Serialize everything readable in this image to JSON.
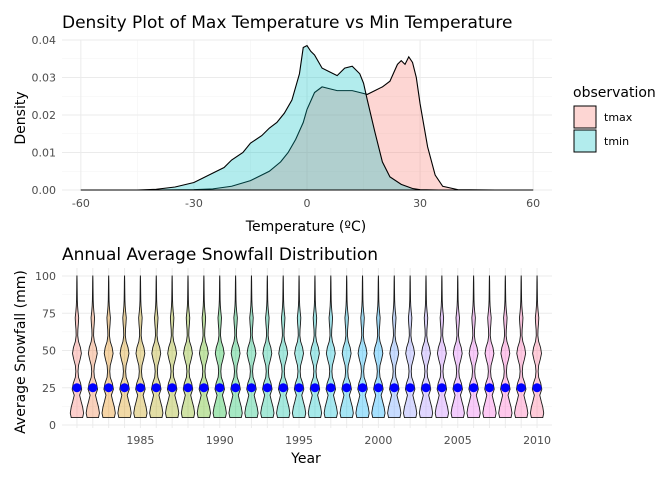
{
  "chart_data": [
    {
      "type": "area",
      "title": "Density Plot of Max Temperature vs Min Temperature",
      "xlabel": "Temperature (ºC)",
      "ylabel": "Density",
      "xlim": [
        -65,
        65
      ],
      "ylim": [
        0,
        0.04
      ],
      "x_ticks": [
        -60,
        -30,
        0,
        30,
        60
      ],
      "x_tick_labels": [
        "-60",
        "-30",
        "0",
        "30",
        "60"
      ],
      "y_ticks": [
        0,
        0.01,
        0.02,
        0.03,
        0.04
      ],
      "y_tick_labels": [
        "0.00",
        "0.01",
        "0.02",
        "0.03",
        "0.04"
      ],
      "grid": true,
      "legend": {
        "title": "observation",
        "placement": "right",
        "entries": [
          {
            "label": "tmax",
            "color": "#f8766d"
          },
          {
            "label": "tmin",
            "color": "#00bfc4"
          }
        ]
      },
      "series": [
        {
          "name": "tmax",
          "color": "#f8766d",
          "x": [
            -60,
            -40,
            -30,
            -25,
            -20,
            -15,
            -10,
            -7,
            -5,
            -3,
            -1,
            0,
            2,
            4,
            6,
            8,
            10,
            12,
            14,
            16,
            18,
            20,
            22,
            24,
            25,
            26,
            27,
            28,
            29,
            30,
            32,
            34,
            36,
            40,
            50,
            60
          ],
          "y": [
            0,
            0,
            0.0001,
            0.0003,
            0.001,
            0.0025,
            0.005,
            0.0075,
            0.01,
            0.0135,
            0.018,
            0.0215,
            0.026,
            0.0275,
            0.027,
            0.0265,
            0.0265,
            0.0265,
            0.026,
            0.0255,
            0.0265,
            0.0275,
            0.029,
            0.0335,
            0.0345,
            0.0335,
            0.0355,
            0.034,
            0.03,
            0.023,
            0.0115,
            0.004,
            0.001,
            0.0001,
            0,
            0
          ]
        },
        {
          "name": "tmin",
          "color": "#00bfc4",
          "x": [
            -60,
            -45,
            -40,
            -35,
            -30,
            -28,
            -25,
            -22,
            -20,
            -17,
            -15,
            -12,
            -10,
            -8,
            -6,
            -4,
            -2,
            -1,
            0,
            1,
            2,
            4,
            6,
            8,
            10,
            12,
            14,
            15,
            16,
            18,
            20,
            22,
            25,
            28,
            30,
            35,
            40,
            60
          ],
          "y": [
            0,
            0,
            0.0002,
            0.0008,
            0.002,
            0.003,
            0.0045,
            0.006,
            0.008,
            0.01,
            0.0125,
            0.0145,
            0.0165,
            0.018,
            0.0205,
            0.024,
            0.031,
            0.038,
            0.0385,
            0.037,
            0.036,
            0.0325,
            0.0315,
            0.0305,
            0.0325,
            0.033,
            0.031,
            0.0285,
            0.024,
            0.0155,
            0.0075,
            0.0035,
            0.0015,
            0.0004,
            0.0001,
            0,
            0,
            0
          ]
        }
      ]
    },
    {
      "type": "violin",
      "title": "Annual Average Snowfall Distribution",
      "xlabel": "Year",
      "ylabel": "Average Snowfall (mm)",
      "xlim": [
        1980.5,
        2010.5
      ],
      "ylim": [
        0,
        100
      ],
      "x_ticks": [
        1985,
        1990,
        1995,
        2000,
        2005,
        2010
      ],
      "x_tick_labels": [
        "1985",
        "1990",
        "1995",
        "2000",
        "2005",
        "2010"
      ],
      "y_ticks": [
        0,
        25,
        50,
        75,
        100
      ],
      "y_tick_labels": [
        "0",
        "25",
        "50",
        "75",
        "100"
      ],
      "grid": true,
      "years": [
        1981,
        1982,
        1983,
        1984,
        1985,
        1986,
        1987,
        1988,
        1989,
        1990,
        1991,
        1992,
        1993,
        1994,
        1995,
        1996,
        1997,
        1998,
        1999,
        2000,
        2001,
        2002,
        2003,
        2004,
        2005,
        2006,
        2007,
        2008,
        2009,
        2010
      ],
      "median_marker_value": 25,
      "median_marker_color": "#0000ff",
      "violin_profile": {
        "y": [
          5,
          8,
          12,
          16,
          20,
          24,
          28,
          32,
          36,
          40,
          44,
          48,
          52,
          56,
          60,
          64,
          68,
          72,
          76,
          80,
          84,
          88,
          92,
          96,
          100
        ],
        "half_width": [
          0.36,
          0.42,
          0.36,
          0.26,
          0.17,
          0.3,
          0.23,
          0.1,
          0.07,
          0.1,
          0.2,
          0.28,
          0.22,
          0.1,
          0.05,
          0.06,
          0.09,
          0.11,
          0.07,
          0.04,
          0.025,
          0.02,
          0.015,
          0.012,
          0.004
        ]
      },
      "fill_colors": [
        "#f8766d",
        "#f17d43",
        "#e58700",
        "#d69100",
        "#c49a00",
        "#b0a100",
        "#99a800",
        "#7cae00",
        "#53b400",
        "#00b82a",
        "#00bc56",
        "#00be72",
        "#00c08b",
        "#00c0a0",
        "#00c1b3",
        "#00bfc4",
        "#00bcd5",
        "#00b8e3",
        "#00b0f6",
        "#00a9ff",
        "#619cff",
        "#8b93ff",
        "#a58aff",
        "#c77cff",
        "#dc71fa",
        "#ec69ef",
        "#f863df",
        "#ff61c9",
        "#ff64b0",
        "#ff6c91"
      ]
    }
  ]
}
